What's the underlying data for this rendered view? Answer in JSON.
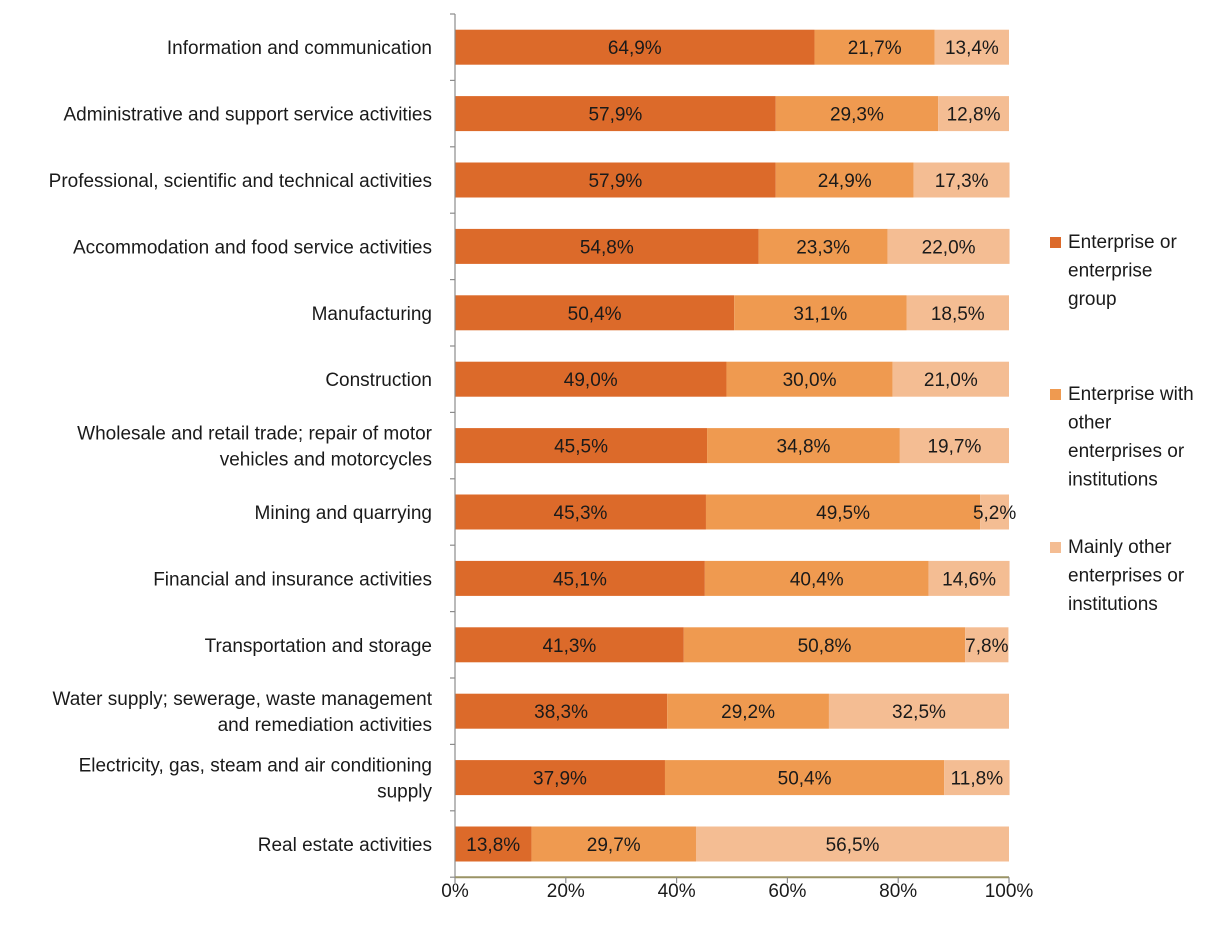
{
  "chart_data": {
    "type": "bar",
    "orientation": "horizontal",
    "stacked": true,
    "title": "",
    "xlabel": "",
    "ylabel": "",
    "xlim": [
      0,
      100
    ],
    "x_ticks": [
      "0%",
      "20%",
      "40%",
      "60%",
      "80%",
      "100%"
    ],
    "legend_position": "right",
    "grid": false,
    "categories": [
      [
        "Information and communication"
      ],
      [
        "Administrative and support service activities"
      ],
      [
        "Professional, scientific and technical activities"
      ],
      [
        "Accommodation and food service activities"
      ],
      [
        "Manufacturing"
      ],
      [
        "Construction"
      ],
      [
        "Wholesale and retail trade; repair of motor",
        "vehicles and motorcycles"
      ],
      [
        "Mining and quarrying"
      ],
      [
        "Financial and insurance activities"
      ],
      [
        "Transportation and storage"
      ],
      [
        "Water supply; sewerage, waste management",
        "and remediation activities"
      ],
      [
        "Electricity, gas, steam and air conditioning",
        "supply"
      ],
      [
        "Real estate activities"
      ]
    ],
    "series": [
      {
        "name": [
          "Enterprise or",
          "enterprise",
          "group"
        ],
        "color": "#dc6a2a",
        "values": [
          64.9,
          57.9,
          57.9,
          54.8,
          50.4,
          49.0,
          45.5,
          45.3,
          45.1,
          41.3,
          38.3,
          37.9,
          13.8
        ],
        "labels": [
          "64,9%",
          "57,9%",
          "57,9%",
          "54,8%",
          "50,4%",
          "49,0%",
          "45,5%",
          "45,3%",
          "45,1%",
          "41,3%",
          "38,3%",
          "37,9%",
          "13,8%"
        ]
      },
      {
        "name": [
          "Enterprise with",
          "other",
          "enterprises or",
          "institutions"
        ],
        "color": "#ef9a50",
        "values": [
          21.7,
          29.3,
          24.9,
          23.3,
          31.1,
          30.0,
          34.8,
          49.5,
          40.4,
          50.8,
          29.2,
          50.4,
          29.7
        ],
        "labels": [
          "21,7%",
          "29,3%",
          "24,9%",
          "23,3%",
          "31,1%",
          "30,0%",
          "34,8%",
          "49,5%",
          "40,4%",
          "50,8%",
          "29,2%",
          "50,4%",
          "29,7%"
        ]
      },
      {
        "name": [
          "Mainly other",
          "enterprises or",
          "institutions"
        ],
        "color": "#f4bd93",
        "values": [
          13.4,
          12.8,
          17.3,
          22.0,
          18.5,
          21.0,
          19.7,
          5.2,
          14.6,
          7.8,
          32.5,
          11.8,
          56.5
        ],
        "labels": [
          "13,4%",
          "12,8%",
          "17,3%",
          "22,0%",
          "18,5%",
          "21,0%",
          "19,7%",
          "5,2%",
          "14,6%",
          "7,8%",
          "32,5%",
          "11,8%",
          "56,5%"
        ]
      }
    ]
  }
}
